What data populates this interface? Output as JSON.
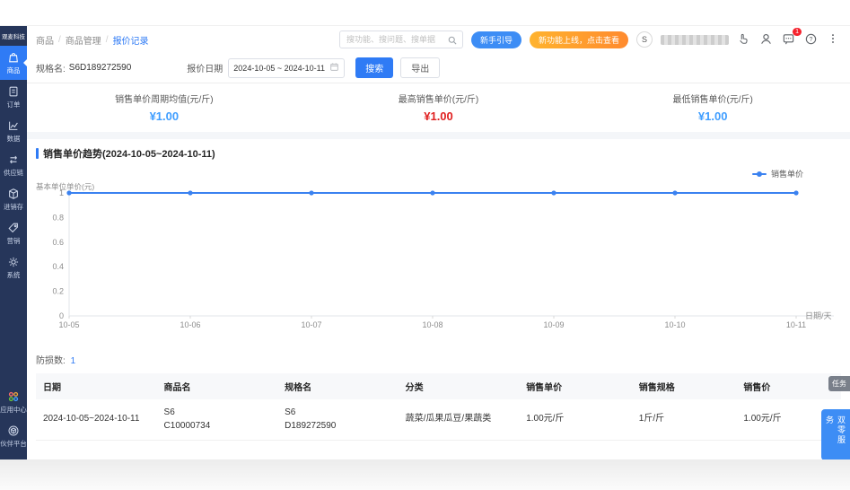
{
  "sidebar": {
    "logo": "观麦科技",
    "items": [
      {
        "key": "goods",
        "label": "商品",
        "icon": "bag-icon",
        "active": true
      },
      {
        "key": "orders",
        "label": "订单",
        "icon": "order-icon",
        "active": false
      },
      {
        "key": "data",
        "label": "数据",
        "icon": "chart-icon",
        "active": false
      },
      {
        "key": "supply",
        "label": "供应链",
        "icon": "supply-arrows-icon",
        "active": false
      },
      {
        "key": "inventory",
        "label": "进销存",
        "icon": "cube-icon",
        "active": false
      },
      {
        "key": "marketing",
        "label": "营销",
        "icon": "tag-icon",
        "active": false
      },
      {
        "key": "system",
        "label": "系统",
        "icon": "gear-icon",
        "active": false
      }
    ],
    "bottom_items": [
      {
        "key": "app-center",
        "label": "应用中心",
        "icon": "apps-grid-icon",
        "active": false
      },
      {
        "key": "partner",
        "label": "伙伴平台",
        "icon": "partner-cube-icon",
        "active": false
      }
    ]
  },
  "header": {
    "breadcrumb": [
      "商品",
      "商品管理",
      "报价记录"
    ],
    "search_placeholder": "搜功能、搜问题、搜单据",
    "guide_button": "新手引导",
    "promo_button": "新功能上线，点击查看",
    "avatar_initial": "S",
    "message_badge": "1",
    "icons": [
      "search-icon",
      "hand-icon",
      "support-icon",
      "message-icon",
      "help-icon",
      "more-icon"
    ]
  },
  "filters": {
    "spec_label": "规格名:",
    "spec_value": "S6D189272590",
    "date_label": "报价日期",
    "date_value": "2024-10-05 ~ 2024-10-11",
    "search_button": "搜索",
    "export_button": "导出"
  },
  "stats": [
    {
      "label": "销售单价周期均值(元/斤)",
      "value": "¥1.00",
      "color": "#409EFF"
    },
    {
      "label": "最高销售单价(元/斤)",
      "value": "¥1.00",
      "color": "#E02020"
    },
    {
      "label": "最低销售单价(元/斤)",
      "value": "¥1.00",
      "color": "#409EFF"
    }
  ],
  "chart_data": {
    "type": "line",
    "title": "销售单价趋势(2024-10-05~2024-10-11)",
    "x": [
      "10-05",
      "10-06",
      "10-07",
      "10-08",
      "10-09",
      "10-10",
      "10-11"
    ],
    "series": [
      {
        "name": "销售单价",
        "values": [
          1,
          1,
          1,
          1,
          1,
          1,
          1
        ]
      }
    ],
    "ylabel": "基本单位单价(元)",
    "xlabel": "日期/天",
    "ylim": [
      0,
      1
    ],
    "yticks": [
      0,
      0.2,
      0.4,
      0.6,
      0.8,
      1
    ],
    "grid": false,
    "legend_position": "top-right",
    "line_color": "#3B82F0"
  },
  "table": {
    "count_label": "防损数:",
    "count_value": "1",
    "columns": [
      "日期",
      "商品名",
      "规格名",
      "分类",
      "销售单价",
      "销售规格",
      "销售价"
    ],
    "col_widths": [
      "15%",
      "15%",
      "15%",
      "15%",
      "14%",
      "13%",
      "13%"
    ],
    "rows": [
      [
        [
          "2024-10-05~2024-10-11"
        ],
        [
          "S6",
          "C10000734"
        ],
        [
          "S6",
          "D189272590"
        ],
        [
          "蔬菜/瓜果瓜豆/果蔬类"
        ],
        [
          "1.00元/斤"
        ],
        [
          "1斤/斤"
        ],
        [
          "1.00元/斤"
        ]
      ]
    ]
  },
  "floating": {
    "task_tab": "任务",
    "service_tab": "双零服务"
  }
}
